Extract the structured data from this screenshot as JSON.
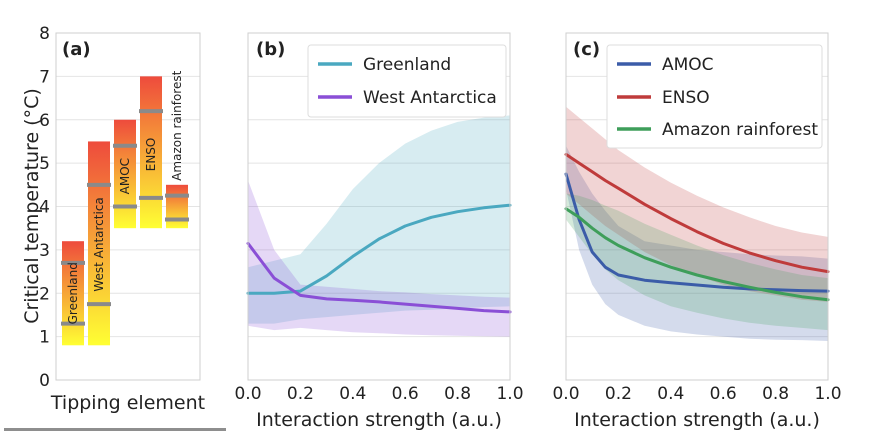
{
  "chart_data": [
    {
      "panel": "(a)",
      "type": "bar",
      "ylabel": "Critical temperature (°C)",
      "xlabel": "Tipping element",
      "ylim": [
        0,
        8
      ],
      "yticks": [
        0,
        1,
        2,
        3,
        4,
        5,
        6,
        7,
        8
      ],
      "grid": true,
      "gradient_colors": [
        "#ffff33",
        "#ee4b3c"
      ],
      "marker_color": "#8a8a8a",
      "categories": [
        "Greenland",
        "West Antarctica",
        "AMOC",
        "ENSO",
        "Amazon rainforest"
      ],
      "bars": [
        {
          "label": "Greenland",
          "low": 0.8,
          "high": 3.2,
          "markers": [
            1.3,
            2.7
          ]
        },
        {
          "label": "West Antarctica",
          "low": 0.8,
          "high": 5.5,
          "markers": [
            1.75,
            4.5
          ]
        },
        {
          "label": "AMOC",
          "low": 3.5,
          "high": 6.0,
          "markers": [
            4.0,
            5.4
          ]
        },
        {
          "label": "ENSO",
          "low": 3.5,
          "high": 7.0,
          "markers": [
            4.2,
            6.2
          ]
        },
        {
          "label": "Amazon rainforest",
          "low": 3.5,
          "high": 4.5,
          "markers": [
            3.7,
            4.25
          ]
        }
      ]
    },
    {
      "panel": "(b)",
      "type": "line",
      "xlabel": "Interaction strength (a.u.)",
      "xlim": [
        0,
        1
      ],
      "ylim": [
        0,
        8
      ],
      "xticks": [
        "0.0",
        "0.2",
        "0.4",
        "0.6",
        "0.8",
        "1.0"
      ],
      "grid": true,
      "legend": "top-right",
      "x": [
        0.0,
        0.1,
        0.2,
        0.3,
        0.4,
        0.5,
        0.6,
        0.7,
        0.8,
        0.9,
        1.0
      ],
      "series": [
        {
          "name": "Greenland",
          "color": "#4aa8c0",
          "values": [
            2.0,
            2.0,
            2.05,
            2.4,
            2.85,
            3.25,
            3.55,
            3.75,
            3.88,
            3.97,
            4.03
          ],
          "band_low": [
            1.3,
            1.3,
            1.4,
            1.45,
            1.5,
            1.55,
            1.6,
            1.62,
            1.65,
            1.68,
            1.7
          ],
          "band_high": [
            2.6,
            2.75,
            2.9,
            3.6,
            4.4,
            5.0,
            5.45,
            5.75,
            5.95,
            6.05,
            6.1
          ]
        },
        {
          "name": "West Antarctica",
          "color": "#8a4fd6",
          "values": [
            3.15,
            2.35,
            1.95,
            1.87,
            1.84,
            1.8,
            1.75,
            1.7,
            1.65,
            1.6,
            1.57
          ],
          "band_low": [
            1.25,
            1.15,
            1.2,
            1.15,
            1.1,
            1.08,
            1.05,
            1.03,
            1.02,
            1.01,
            1.0
          ],
          "band_high": [
            4.6,
            3.0,
            2.2,
            2.15,
            2.1,
            2.05,
            2.02,
            1.98,
            1.95,
            1.92,
            1.9
          ]
        }
      ]
    },
    {
      "panel": "(c)",
      "type": "line",
      "xlabel": "Interaction strength (a.u.)",
      "xlim": [
        0,
        1
      ],
      "ylim": [
        0,
        8
      ],
      "xticks": [
        "0.0",
        "0.2",
        "0.4",
        "0.6",
        "0.8",
        "1.0"
      ],
      "grid": true,
      "legend": "top-left",
      "x": [
        0.0,
        0.05,
        0.1,
        0.15,
        0.2,
        0.3,
        0.4,
        0.5,
        0.6,
        0.7,
        0.8,
        0.9,
        1.0
      ],
      "series": [
        {
          "name": "AMOC",
          "color": "#3b5ca8",
          "values": [
            4.75,
            3.7,
            2.95,
            2.6,
            2.42,
            2.3,
            2.24,
            2.19,
            2.14,
            2.1,
            2.08,
            2.06,
            2.05
          ],
          "band_low": [
            4.4,
            3.0,
            2.2,
            1.75,
            1.5,
            1.25,
            1.12,
            1.05,
            1.0,
            0.95,
            0.93,
            0.92,
            0.9
          ],
          "band_high": [
            5.4,
            4.8,
            4.3,
            3.9,
            3.55,
            3.2,
            3.1,
            3.0,
            2.95,
            2.9,
            2.87,
            2.85,
            2.8
          ]
        },
        {
          "name": "ENSO",
          "color": "#bf3b3b",
          "values": [
            5.2,
            5.0,
            4.8,
            4.6,
            4.42,
            4.05,
            3.72,
            3.42,
            3.15,
            2.93,
            2.75,
            2.6,
            2.5
          ],
          "band_low": [
            4.3,
            4.05,
            3.8,
            3.55,
            3.35,
            2.95,
            2.65,
            2.4,
            2.2,
            2.05,
            1.95,
            1.85,
            1.8
          ],
          "band_high": [
            6.3,
            6.05,
            5.8,
            5.55,
            5.3,
            4.9,
            4.55,
            4.25,
            3.98,
            3.75,
            3.55,
            3.4,
            3.3
          ]
        },
        {
          "name": "Amazon rainforest",
          "color": "#3e9e5a",
          "values": [
            3.95,
            3.75,
            3.5,
            3.28,
            3.1,
            2.82,
            2.6,
            2.42,
            2.27,
            2.14,
            2.02,
            1.92,
            1.85
          ],
          "band_low": [
            3.7,
            3.3,
            2.9,
            2.55,
            2.3,
            1.95,
            1.7,
            1.55,
            1.42,
            1.32,
            1.25,
            1.2,
            1.15
          ],
          "band_high": [
            4.3,
            4.25,
            4.15,
            4.02,
            3.9,
            3.6,
            3.35,
            3.1,
            2.88,
            2.7,
            2.55,
            2.42,
            2.35
          ]
        }
      ]
    }
  ]
}
